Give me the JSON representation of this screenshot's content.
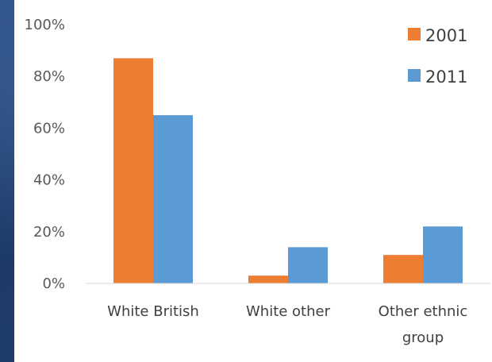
{
  "chart_data": {
    "type": "bar",
    "categories": [
      "White British",
      "White other",
      "Other ethnic group"
    ],
    "category_lines": [
      [
        "White British"
      ],
      [
        "White other"
      ],
      [
        "Other ethnic",
        "group"
      ]
    ],
    "series": [
      {
        "name": "2001",
        "values": [
          87,
          3,
          11
        ],
        "color": "#ED7D31"
      },
      {
        "name": "2011",
        "values": [
          65,
          14,
          22
        ],
        "color": "#5B9BD5"
      }
    ],
    "yticks": [
      "0%",
      "20%",
      "40%",
      "60%",
      "80%",
      "100%"
    ],
    "ylim": [
      0,
      100
    ],
    "legend_position": "top-right",
    "grid": false,
    "title": "",
    "xlabel": "",
    "ylabel": ""
  }
}
